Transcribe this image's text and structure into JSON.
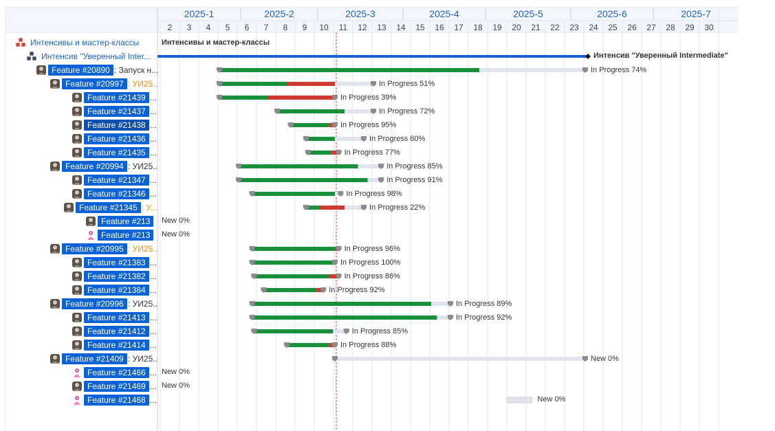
{
  "timeline": {
    "months": [
      "2025-1",
      "2025-2",
      "2025-3",
      "2025-4",
      "2025-5",
      "2025-6",
      "2025-7"
    ],
    "days": [
      "2",
      "3",
      "4",
      "5",
      "6",
      "7",
      "8",
      "9",
      "10",
      "11",
      "12",
      "13",
      "14",
      "15",
      "16",
      "17",
      "18",
      "19",
      "20",
      "21",
      "22",
      "23",
      "24",
      "25",
      "26",
      "27",
      "28",
      "29",
      "30"
    ],
    "today_marker_day": 11
  },
  "rows": [
    {
      "kind": "group",
      "label": "Интенсивы и мастер-классы",
      "icon": "red-cubes-icon"
    },
    {
      "kind": "group",
      "label": "Интенсив \"Уверенный Inter...",
      "icon": "dark-cubes-icon"
    },
    {
      "kind": "feature",
      "chip": "Feature #20890",
      "suffix": ": Запуск н...",
      "suffix_color": "dark",
      "icon": "user-avatar-icon"
    },
    {
      "kind": "feature",
      "chip": "Feature #20997",
      "suffix": ": УИ25...",
      "suffix_color": "orange",
      "icon": "user-avatar-icon"
    },
    {
      "kind": "feature",
      "chip": "Feature #21439",
      "suffix": "...",
      "suffix_color": "dark",
      "icon": "user-avatar-icon"
    },
    {
      "kind": "feature",
      "chip": "Feature #21437",
      "suffix": "...",
      "suffix_color": "dark",
      "icon": "user-avatar-icon"
    },
    {
      "kind": "feature",
      "chip": "Feature #21438",
      "suffix": "...",
      "suffix_color": "dark",
      "icon": "user-avatar-icon",
      "active": true
    },
    {
      "kind": "feature",
      "chip": "Feature #21436",
      "suffix": "...",
      "suffix_color": "dark",
      "icon": "user-avatar-icon"
    },
    {
      "kind": "feature",
      "chip": "Feature #21435",
      "suffix": "...",
      "suffix_color": "dark",
      "icon": "user-avatar-icon"
    },
    {
      "kind": "feature",
      "chip": "Feature #20994",
      "suffix": ": УИ25...",
      "suffix_color": "dark",
      "icon": "user-avatar-icon"
    },
    {
      "kind": "feature",
      "chip": "Feature #21347",
      "suffix": "...",
      "suffix_color": "dark",
      "icon": "user-avatar-icon"
    },
    {
      "kind": "feature",
      "chip": "Feature #21346",
      "suffix": "...",
      "suffix_color": "dark",
      "icon": "user-avatar-icon"
    },
    {
      "kind": "feature",
      "chip": "Feature #21345",
      "suffix": ": У...",
      "suffix_color": "orange",
      "icon": "user-avatar-icon"
    },
    {
      "kind": "feature",
      "chip": "Feature #213",
      "suffix": "",
      "suffix_color": "dark",
      "icon": "user-avatar-icon"
    },
    {
      "kind": "feature",
      "chip": "Feature #213",
      "suffix": "",
      "suffix_color": "dark",
      "icon": "pink-person-icon"
    },
    {
      "kind": "feature",
      "chip": "Feature #20995",
      "suffix": ": УИ25...",
      "suffix_color": "orange",
      "icon": "user-avatar-icon"
    },
    {
      "kind": "feature",
      "chip": "Feature #21383",
      "suffix": "...",
      "suffix_color": "dark",
      "icon": "user-avatar-icon"
    },
    {
      "kind": "feature",
      "chip": "Feature #21382",
      "suffix": "...",
      "suffix_color": "dark",
      "icon": "user-avatar-icon"
    },
    {
      "kind": "feature",
      "chip": "Feature #21384",
      "suffix": "...",
      "suffix_color": "dark",
      "icon": "user-avatar-icon"
    },
    {
      "kind": "feature",
      "chip": "Feature #20996",
      "suffix": ": УИ25...",
      "suffix_color": "dark",
      "icon": "user-avatar-icon"
    },
    {
      "kind": "feature",
      "chip": "Feature #21413",
      "suffix": "...",
      "suffix_color": "dark",
      "icon": "user-avatar-icon"
    },
    {
      "kind": "feature",
      "chip": "Feature #21412",
      "suffix": "...",
      "suffix_color": "dark",
      "icon": "user-avatar-icon"
    },
    {
      "kind": "feature",
      "chip": "Feature #21414",
      "suffix": "...",
      "suffix_color": "dark",
      "icon": "user-avatar-icon"
    },
    {
      "kind": "feature",
      "chip": "Feature #21409",
      "suffix": ": УИ25...",
      "suffix_color": "dark",
      "icon": "user-avatar-icon"
    },
    {
      "kind": "feature",
      "chip": "Feature #21466",
      "suffix": "...",
      "suffix_color": "dark",
      "icon": "pink-person-icon"
    },
    {
      "kind": "feature",
      "chip": "Feature #21469",
      "suffix": "...",
      "suffix_color": "dark",
      "icon": "user-avatar-icon"
    },
    {
      "kind": "feature",
      "chip": "Feature #21468",
      "suffix": "...",
      "suffix_color": "dark",
      "icon": "pink-person-icon"
    }
  ],
  "bars": [
    {
      "row": 0,
      "type": "group-label",
      "label": "Интенсивы и мастер-классы"
    },
    {
      "row": 1,
      "type": "milestone-line",
      "start_day": 2,
      "end_day": 24,
      "label": "Интенсив \"Уверенный Intermediate\""
    },
    {
      "row": 2,
      "start_day": 5,
      "end_day": 24,
      "green_to": 18.5,
      "red_to": 18.5,
      "label": "In Progress 74%"
    },
    {
      "row": 3,
      "start_day": 5,
      "end_day": 13,
      "green_to": 8.5,
      "red_to": 11,
      "label": "In Progress 51%"
    },
    {
      "row": 4,
      "start_day": 5,
      "end_day": 11,
      "green_to": 7.5,
      "red_to": 11,
      "label": "In Progress 39%"
    },
    {
      "row": 5,
      "start_day": 8,
      "end_day": 13,
      "green_to": 11.5,
      "red_to": 11.5,
      "label": "In Progress 72%"
    },
    {
      "row": 6,
      "start_day": 8.7,
      "end_day": 11,
      "green_to": 10.7,
      "red_to": 11,
      "label": "In Progress 95%"
    },
    {
      "row": 7,
      "start_day": 9.5,
      "end_day": 12.5,
      "green_to": 11,
      "red_to": 11,
      "label": "In Progress 60%"
    },
    {
      "row": 8,
      "start_day": 9.6,
      "end_day": 11.2,
      "green_to": 10.8,
      "red_to": 11.2,
      "label": "In Progress 77%"
    },
    {
      "row": 9,
      "start_day": 6,
      "end_day": 13.4,
      "green_to": 12.2,
      "red_to": 12.2,
      "label": "In Progress 85%"
    },
    {
      "row": 10,
      "start_day": 6,
      "end_day": 13.4,
      "green_to": 12.7,
      "red_to": 12.7,
      "label": "In Progress 91%"
    },
    {
      "row": 11,
      "start_day": 6.7,
      "end_day": 11.3,
      "green_to": 11,
      "red_to": 11,
      "label": "In Progress 98%"
    },
    {
      "row": 12,
      "start_day": 9.5,
      "end_day": 12.5,
      "green_to": 10.2,
      "red_to": 11.5,
      "label": "In Progress 22%"
    },
    {
      "row": 13,
      "type": "text-only",
      "start_day": 2.1,
      "label": "New 0%"
    },
    {
      "row": 14,
      "type": "text-only",
      "start_day": 2.1,
      "label": "New 0%"
    },
    {
      "row": 15,
      "start_day": 6.7,
      "end_day": 11.2,
      "green_to": 11,
      "red_to": 11.2,
      "label": "In Progress 96%"
    },
    {
      "row": 16,
      "start_day": 6.7,
      "end_day": 11,
      "green_to": 11,
      "red_to": 11,
      "label": "In Progress 100%"
    },
    {
      "row": 17,
      "start_day": 6.8,
      "end_day": 11.2,
      "green_to": 10.7,
      "red_to": 11.2,
      "label": "In Progress 86%"
    },
    {
      "row": 18,
      "start_day": 7.3,
      "end_day": 10.4,
      "green_to": 10,
      "red_to": 10.4,
      "label": "In Progress 92%"
    },
    {
      "row": 19,
      "start_day": 6.7,
      "end_day": 17,
      "green_to": 16,
      "red_to": 16,
      "label": "In Progress 89%"
    },
    {
      "row": 20,
      "start_day": 6.7,
      "end_day": 17,
      "green_to": 16.3,
      "red_to": 16.3,
      "label": "In Progress 92%"
    },
    {
      "row": 21,
      "start_day": 6.8,
      "end_day": 11.6,
      "green_to": 10.9,
      "red_to": 10.9,
      "label": "In Progress 85%"
    },
    {
      "row": 22,
      "start_day": 8.5,
      "end_day": 11,
      "green_to": 10.7,
      "red_to": 11,
      "label": "In Progress 88%"
    },
    {
      "row": 23,
      "start_day": 11,
      "end_day": 24,
      "green_to": 11,
      "red_to": 11,
      "label": "New 0%"
    },
    {
      "row": 24,
      "type": "text-only",
      "start_day": 2.1,
      "label": "New 0%"
    },
    {
      "row": 25,
      "type": "text-only",
      "start_day": 2.1,
      "label": "New 0%"
    },
    {
      "row": 26,
      "type": "unscheduled",
      "start_day": 19.5,
      "end_day": 20.8,
      "label": "New 0%"
    }
  ],
  "colors": {
    "accent": "#0a63d6",
    "progress": "#1a8f3c",
    "overdue": "#cc3b2e",
    "remaining": "#e1e4ee",
    "today": "#d43a3a",
    "milestone": "#1761d4",
    "grid": "#e2e5ee",
    "month_text": "#1e63c7"
  }
}
